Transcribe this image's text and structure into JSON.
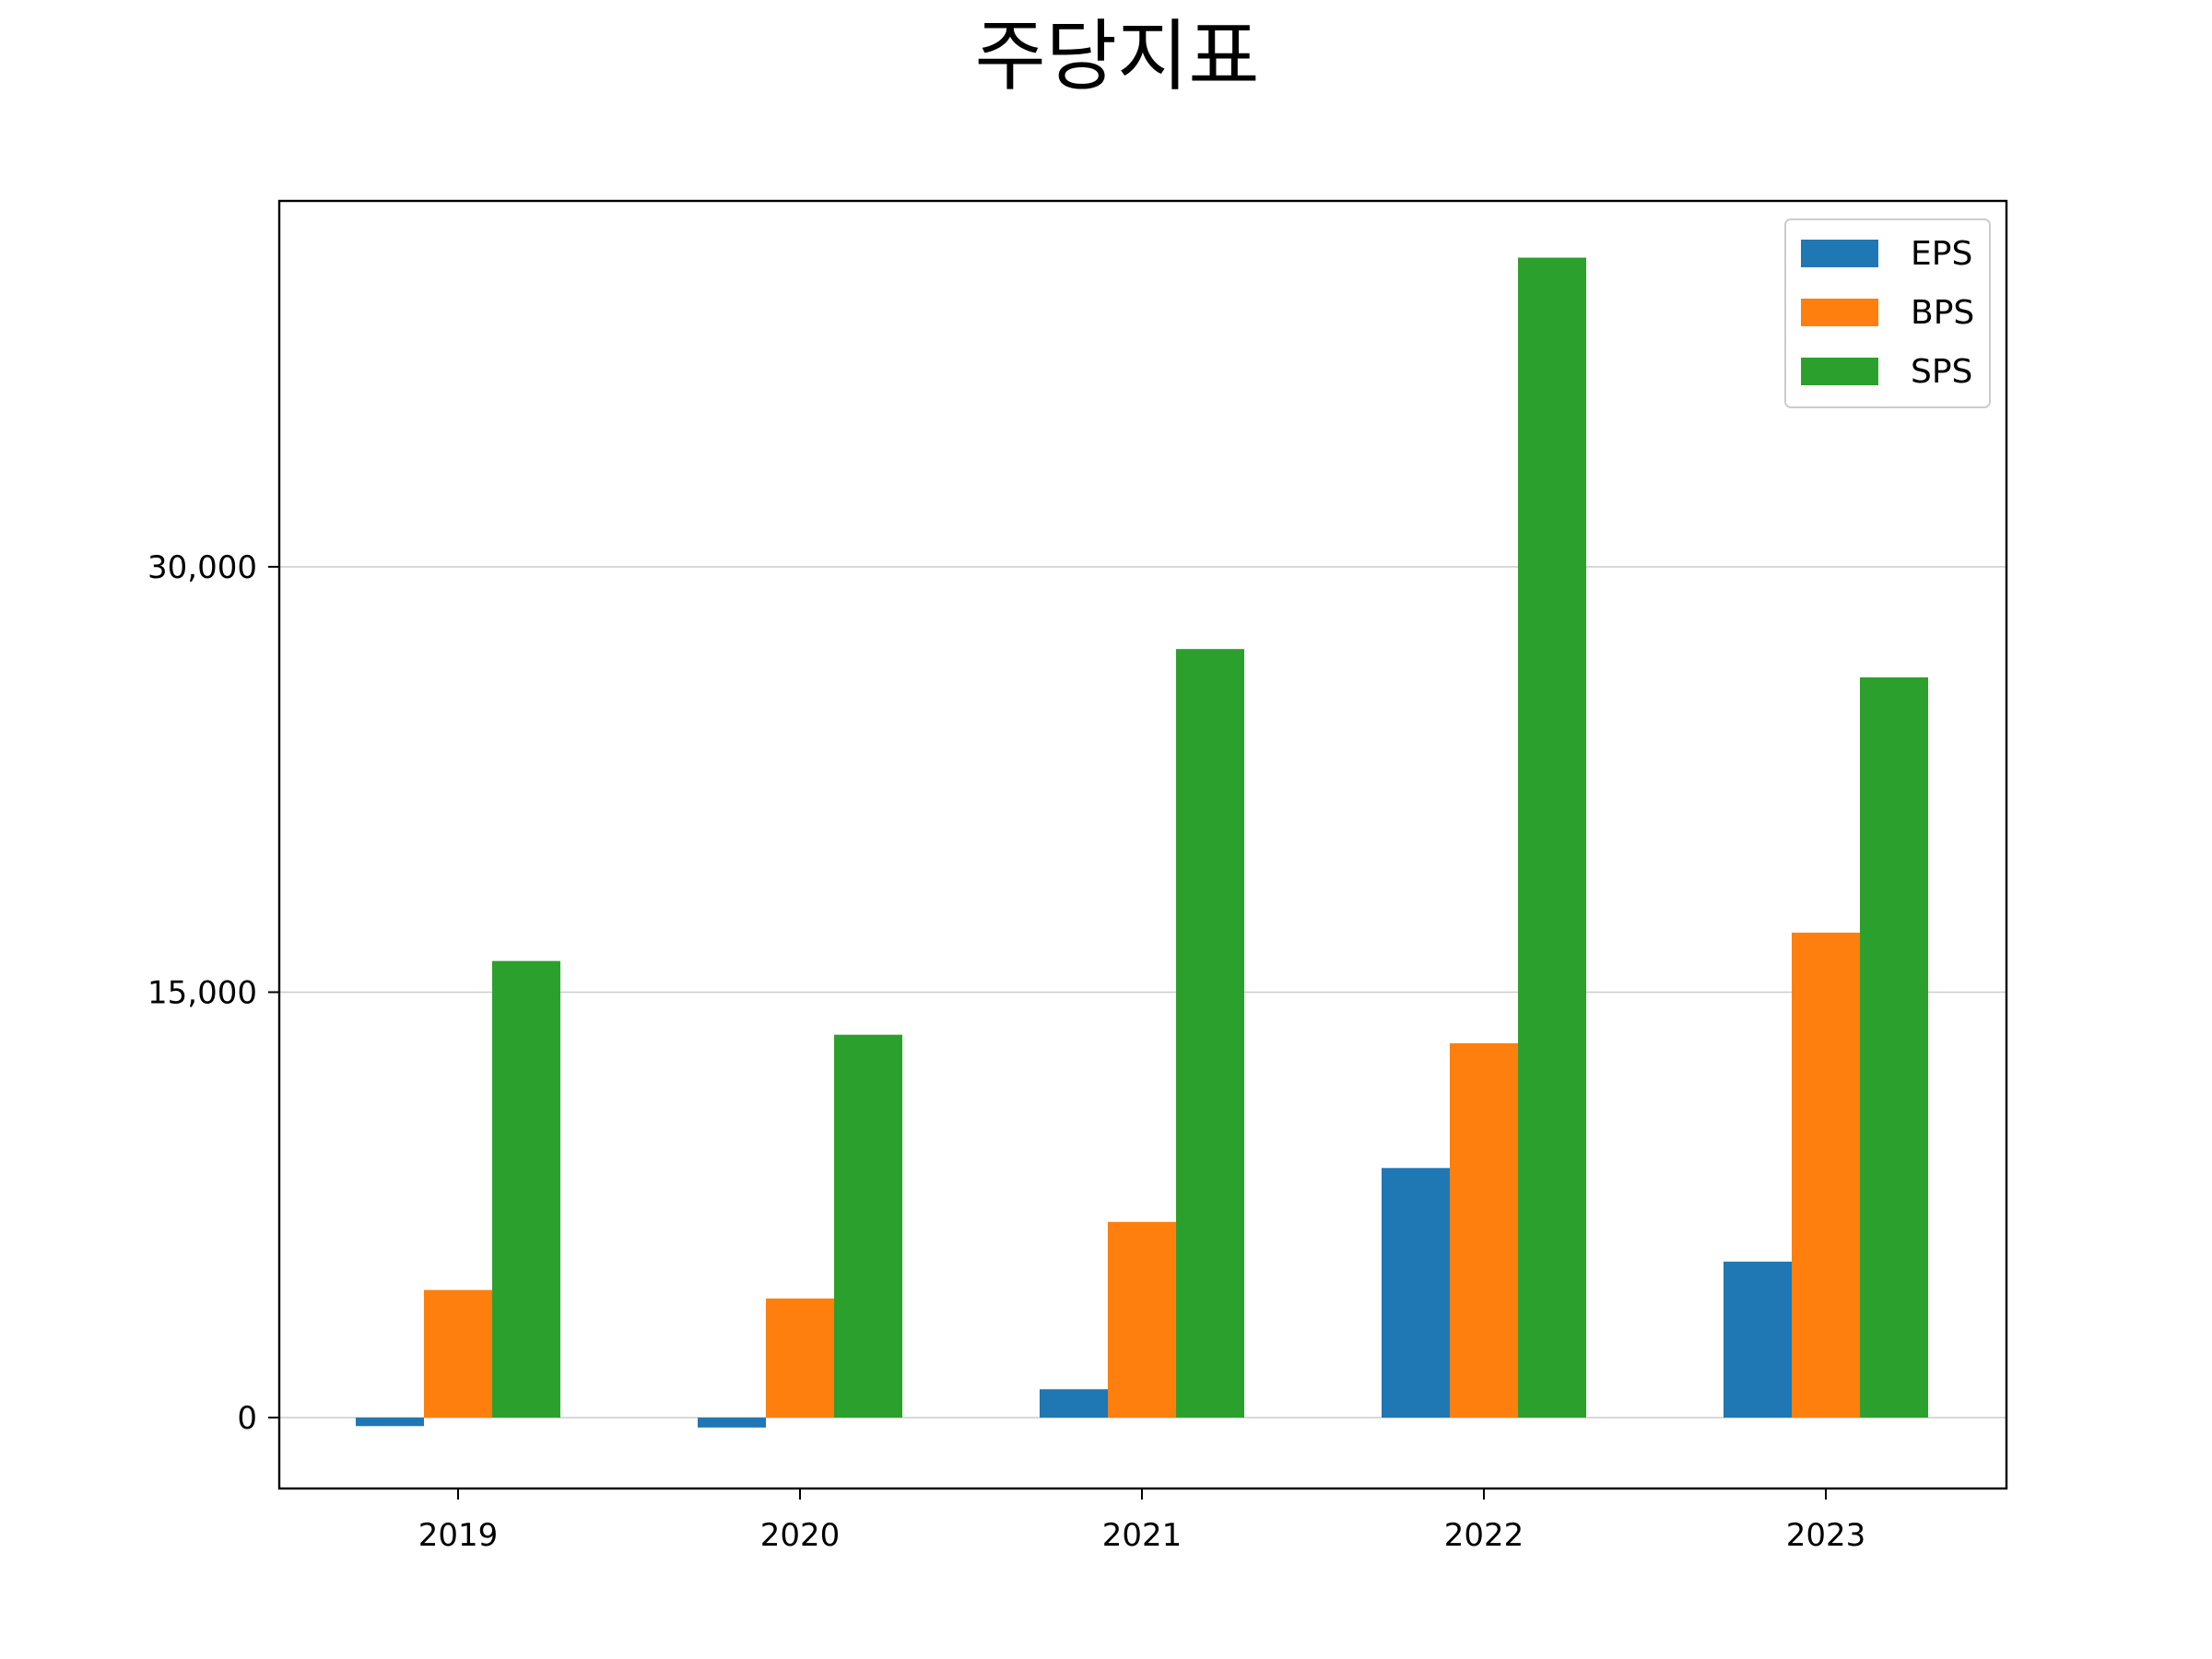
{
  "chart_data": {
    "type": "bar",
    "title": "주당지표",
    "xlabel": "",
    "ylabel": "",
    "categories": [
      "2019",
      "2020",
      "2021",
      "2022",
      "2023"
    ],
    "series": [
      {
        "name": "EPS",
        "color": "#1f77b4",
        "values": [
          -300,
          -350,
          1000,
          8800,
          5500
        ]
      },
      {
        "name": "BPS",
        "color": "#ff7f0e",
        "values": [
          4500,
          4200,
          6900,
          13200,
          17100
        ]
      },
      {
        "name": "SPS",
        "color": "#2ca02c",
        "values": [
          16100,
          13500,
          27100,
          40900,
          26100
        ]
      }
    ],
    "ylim": [
      -2500,
      42900
    ],
    "yticks": [
      0,
      15000,
      30000
    ],
    "ytick_labels": [
      "0",
      "15,000",
      "30,000"
    ],
    "grid": {
      "y": true,
      "x": false
    },
    "legend": {
      "placement": "top-right"
    }
  }
}
